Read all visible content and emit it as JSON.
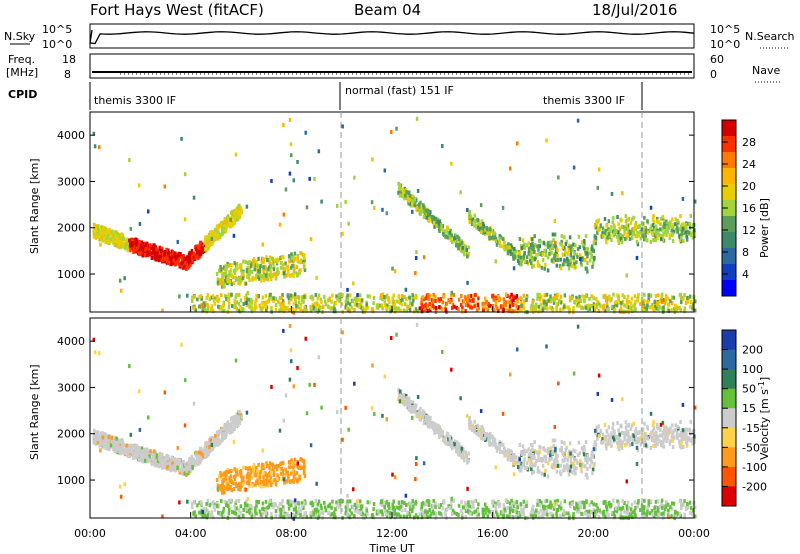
{
  "header": {
    "station": "Fort Hays West (fitACF)",
    "beam": "Beam 04",
    "date": "18/Jul/2016"
  },
  "noise_panel": {
    "left_label": "N.Sky",
    "right_label": "N.Search",
    "left_ticks": [
      "10^5",
      "10^0"
    ],
    "right_ticks": [
      "10^5",
      "10^0"
    ]
  },
  "freq_panel": {
    "left_label_line1": "Freq.",
    "left_label_line2": "[MHz]",
    "right_label": "Nave",
    "left_ticks": [
      "18",
      "8"
    ],
    "right_ticks": [
      "60",
      "0"
    ]
  },
  "cpid": {
    "label": "CPID",
    "segments": [
      {
        "text": "themis 3300 IF",
        "start_hour": 0
      },
      {
        "text": "normal (fast) 151 IF",
        "start_hour": 10
      },
      {
        "text": "themis 3300 IF",
        "start_hour": 22
      }
    ]
  },
  "chart_data": [
    {
      "type": "heatmap",
      "panel": "power",
      "xlabel": "",
      "ylabel": "Slant Range [km]",
      "xlim": [
        0,
        24
      ],
      "ylim": [
        180,
        4500
      ],
      "yticks": [
        1000,
        2000,
        3000,
        4000
      ],
      "colorbar_label": "Power [dB]",
      "colorbar_ticks": [
        "28",
        "24",
        "20",
        "16",
        "12",
        "8",
        "4"
      ],
      "colorbar_colors": [
        "#d40000",
        "#ff3000",
        "#ff7a00",
        "#ffb400",
        "#eacd00",
        "#a0d43a",
        "#5a9e5a",
        "#3c8a6a",
        "#2a6aa0",
        "#1040c0",
        "#0000ff"
      ],
      "features": [
        {
          "name": "arc",
          "x_start": 0.1,
          "x_end": 6.0,
          "range_center": [
            2000,
            1300,
            2500
          ],
          "level": 24
        },
        {
          "name": "patch",
          "x_start": 5.0,
          "x_end": 8.5,
          "range": [
            700,
            1200
          ],
          "level": 14
        },
        {
          "name": "ground",
          "x_start": 4.0,
          "x_end": 24,
          "range": [
            200,
            600
          ],
          "level": 18
        },
        {
          "name": "late-arcs",
          "x_start": 12.2,
          "x_end": 24,
          "range": [
            1000,
            2900
          ],
          "level": 12
        }
      ]
    },
    {
      "type": "heatmap",
      "panel": "velocity",
      "xlabel": "Time UT",
      "ylabel": "Slant Range [km]",
      "xlim": [
        0,
        24
      ],
      "ylim": [
        180,
        4500
      ],
      "xticks": [
        "00:00",
        "04:00",
        "08:00",
        "12:00",
        "16:00",
        "20:00",
        "00:00"
      ],
      "yticks": [
        1000,
        2000,
        3000,
        4000
      ],
      "colorbar_label": "Velocity [m s^-1]",
      "colorbar_ticks": [
        "200",
        "100",
        "50",
        "15",
        "-15",
        "-50",
        "-100",
        "-200"
      ],
      "colorbar_colors": [
        "#1b3fa8",
        "#2a6aa0",
        "#2f7f58",
        "#62c03a",
        "#cccccc",
        "#ffd24a",
        "#ff9a1a",
        "#ff5500",
        "#dd0000"
      ],
      "features": [
        {
          "name": "arc",
          "x_start": 0.1,
          "x_end": 6.0,
          "velocity": 0
        },
        {
          "name": "patch",
          "x_start": 5.0,
          "x_end": 8.5,
          "velocity": -80
        },
        {
          "name": "ground",
          "x_start": 4.0,
          "x_end": 24,
          "velocity": 20
        },
        {
          "name": "late-arcs",
          "x_start": 12.2,
          "x_end": 24,
          "velocity": 0
        }
      ]
    }
  ]
}
